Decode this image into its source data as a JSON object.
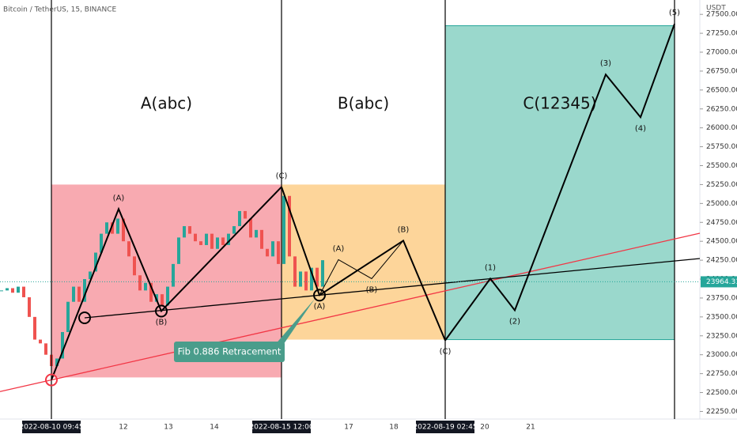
{
  "header": {
    "symbol": "Bitcoin / TetherUS, 15, BINANCE",
    "currency": "USDT"
  },
  "chart_data": {
    "type": "candlestick",
    "values": [
      23850,
      23880,
      23820,
      23900,
      23760,
      23500,
      23200,
      23150,
      23000,
      22850,
      22950,
      23300,
      23700,
      23900,
      23700,
      24000,
      24100,
      24350,
      24600,
      24750,
      24600,
      24800,
      24500,
      24300,
      24050,
      23850,
      23950,
      23700,
      23800,
      23650,
      23900,
      24200,
      24550,
      24700,
      24600,
      24500,
      24450,
      24600,
      24400,
      24550,
      24450,
      24600,
      24700,
      24900,
      24800,
      24550,
      24650,
      24400,
      24300,
      24500,
      24200,
      25100,
      24300,
      23900,
      24100,
      23850,
      24150,
      23900,
      24250
    ],
    "up_color": "#26a69a",
    "down_color": "#ef5350",
    "ylim": [
      22150,
      27690
    ],
    "yticks": [
      {
        "value": 22250,
        "label": "22250.00"
      },
      {
        "value": 22500,
        "label": "22500.00"
      },
      {
        "value": 22750,
        "label": "22750.00"
      },
      {
        "value": 23000,
        "label": "23000.00"
      },
      {
        "value": 23250,
        "label": "23250.00"
      },
      {
        "value": 23500,
        "label": "23500.00"
      },
      {
        "value": 23750,
        "label": "23750.00"
      },
      {
        "value": 24000,
        "label": "24000.00"
      },
      {
        "value": 24250,
        "label": "24250.00"
      },
      {
        "value": 24500,
        "label": "24500.00"
      },
      {
        "value": 24750,
        "label": "24750.00"
      },
      {
        "value": 25000,
        "label": "25000.00"
      },
      {
        "value": 25250,
        "label": "25250.00"
      },
      {
        "value": 25500,
        "label": "25500.00"
      },
      {
        "value": 25750,
        "label": "25750.00"
      },
      {
        "value": 26000,
        "label": "26000.00"
      },
      {
        "value": 26250,
        "label": "26250.00"
      },
      {
        "value": 26500,
        "label": "26500.00"
      },
      {
        "value": 26750,
        "label": "26750.00"
      },
      {
        "value": 27000,
        "label": "27000.00"
      },
      {
        "value": 27250,
        "label": "27250.00"
      },
      {
        "value": 27500,
        "label": "27500.00"
      }
    ],
    "x_labels": [
      "2022-08-10  09:45",
      "12",
      "13",
      "14",
      "2022-08-15  12:00",
      "17",
      "18",
      "2022-08-19  02:45",
      "20",
      "21"
    ],
    "last_price": 23964.31,
    "zones": [
      {
        "label": "A(abc)",
        "color": "#f7a1a8",
        "top": 25250,
        "bottom": 22700
      },
      {
        "label": "B(abc)",
        "color": "#fdd08f",
        "top": 25250,
        "bottom": 23200
      },
      {
        "label": "C(12345)",
        "color": "#8fd4c6",
        "top": 27350,
        "bottom": 23200
      }
    ],
    "trendlines": [
      {
        "color": "#f23645",
        "values": [
          22667,
          24606
        ]
      },
      {
        "color": "#000000",
        "values": [
          23488,
          24272
        ]
      }
    ],
    "waves": [
      {
        "values": [
          22667,
          24927,
          23577,
          25219
        ],
        "labels": [
          null,
          "(A)",
          "(B)",
          "(C)"
        ]
      },
      {
        "values": [
          25219,
          23787,
          24508,
          23190
        ],
        "labels": [
          null,
          "(A)",
          "(B)",
          "(C)"
        ]
      },
      {
        "values": [
          23787,
          24257,
          24006,
          24508
        ],
        "labels": [
          null,
          "(A)",
          "(B)",
          null
        ]
      },
      {
        "values": [
          23190,
          24006,
          23588,
          26705,
          26140,
          27374
        ],
        "labels": [
          null,
          "(1)",
          "(2)",
          "(3)",
          "(4)",
          "(5)"
        ]
      }
    ],
    "annotation": "Fib 0.886 Retracement"
  }
}
